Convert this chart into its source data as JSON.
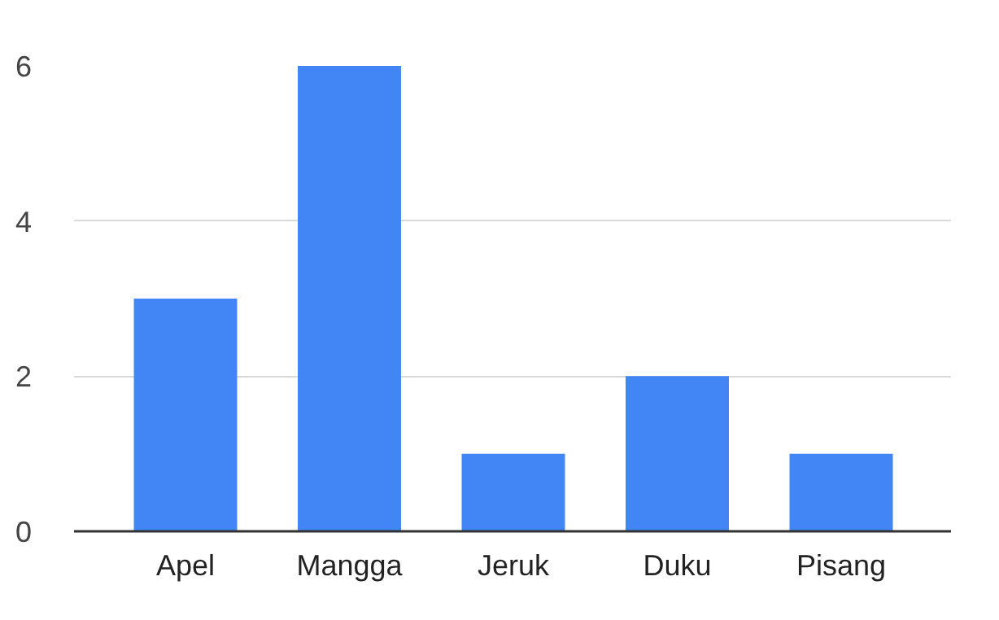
{
  "chart_data": {
    "type": "bar",
    "categories": [
      "Apel",
      "Mangga",
      "Jeruk",
      "Duku",
      "Pisang"
    ],
    "values": [
      3,
      6,
      1,
      2,
      1
    ],
    "color": "#4285f4",
    "ylim": [
      0,
      6
    ],
    "yticks": [
      0,
      2,
      4,
      6
    ],
    "grid": "y"
  }
}
